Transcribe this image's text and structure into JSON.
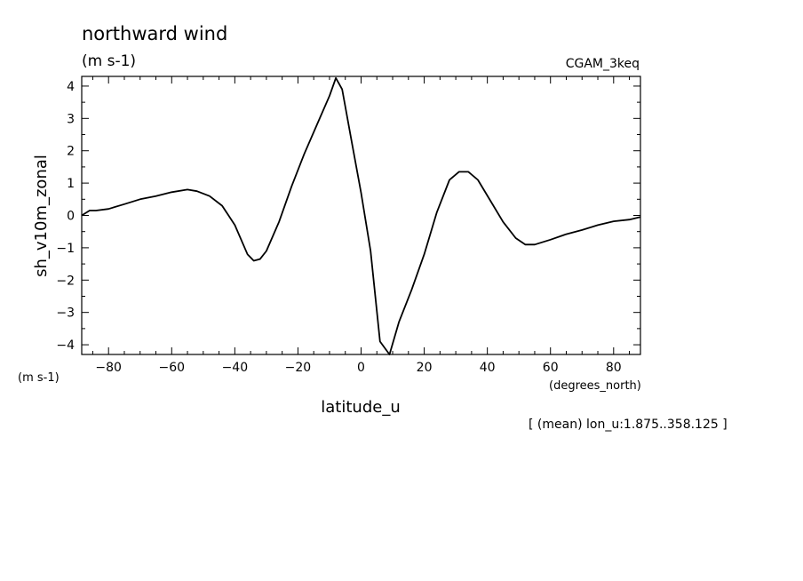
{
  "chart_data": {
    "type": "line",
    "title": "northward wind",
    "subtitle": "(m s-1)",
    "dataset_label": "CGAM_3keq",
    "xlabel": "latitude_u",
    "xunit": "(degrees_north)",
    "ylabel": "sh_v10m_zonal",
    "yunit": "(m s-1)",
    "footnote": "[ (mean) lon_u:1.875..358.125 ]",
    "xlim": [
      -88.5,
      88.5
    ],
    "ylim": [
      -4.3,
      4.3
    ],
    "xticks": [
      -80,
      -60,
      -40,
      -20,
      0,
      20,
      40,
      60,
      80
    ],
    "xtick_labels": [
      "−80",
      "−60",
      "−40",
      "−20",
      "0",
      "20",
      "40",
      "60",
      "80"
    ],
    "yticks": [
      4,
      3,
      2,
      1,
      0,
      -1,
      -2,
      -3,
      -4
    ],
    "ytick_labels": [
      "4",
      "3",
      "2",
      "1",
      "0",
      "−1",
      "−2",
      "−3",
      "−4"
    ],
    "grid": false,
    "series": [
      {
        "x": [
          -88.5,
          -86,
          -84,
          -80,
          -75,
          -70,
          -65,
          -60,
          -55,
          -52,
          -48,
          -44,
          -40,
          -36,
          -34,
          -32,
          -30,
          -26,
          -22,
          -18,
          -14,
          -10,
          -8,
          -6,
          -3,
          0,
          3,
          6,
          9,
          12,
          16,
          20,
          24,
          28,
          31,
          34,
          37,
          41,
          45,
          49,
          52,
          55,
          60,
          65,
          70,
          75,
          80,
          85,
          88.5
        ],
        "y": [
          0,
          0.15,
          0.15,
          0.2,
          0.35,
          0.5,
          0.6,
          0.72,
          0.8,
          0.75,
          0.6,
          0.3,
          -0.3,
          -1.2,
          -1.4,
          -1.35,
          -1.1,
          -0.2,
          0.9,
          1.9,
          2.8,
          3.7,
          4.25,
          3.9,
          2.3,
          0.7,
          -1.1,
          -3.9,
          -4.3,
          -3.3,
          -2.3,
          -1.2,
          0.1,
          1.1,
          1.35,
          1.35,
          1.1,
          0.45,
          -0.2,
          -0.7,
          -0.9,
          -0.9,
          -0.75,
          -0.58,
          -0.45,
          -0.3,
          -0.18,
          -0.13,
          -0.05
        ]
      }
    ]
  }
}
